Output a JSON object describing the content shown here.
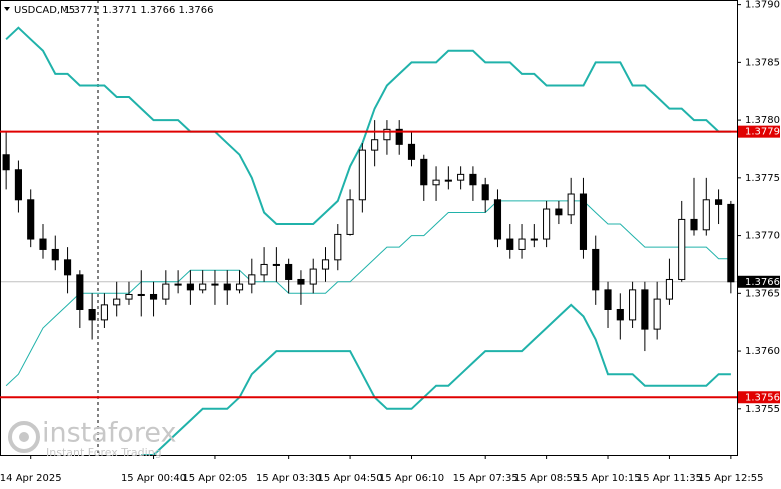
{
  "chart_data": {
    "type": "candlestick",
    "title": "USDCAD,M5",
    "subtitle": "1.3771 1.3771 1.3766 1.3766",
    "categories": [
      null,
      null,
      "14 Apr 2025",
      null,
      null,
      null,
      null,
      null,
      null,
      null,
      null,
      null,
      "15 Apr 00:40",
      null,
      null,
      null,
      null,
      "15 Apr 02:05",
      null,
      null,
      null,
      null,
      null,
      "15 Apr 03:30",
      null,
      null,
      null,
      null,
      "15 Apr 04:50",
      null,
      null,
      null,
      null,
      "15 Apr 06:10",
      null,
      null,
      null,
      null,
      null,
      "15 Apr 07:35",
      null,
      null,
      null,
      null,
      "15 Apr 08:55",
      null,
      null,
      null,
      null,
      "15 Apr 10:15",
      null,
      null,
      null,
      null,
      "15 Apr 11:35",
      null,
      null,
      null,
      null,
      "15 Apr 12:55"
    ],
    "open": [
      1.3777,
      1.37757,
      1.37731,
      1.37697,
      1.37688,
      1.37679,
      1.37666,
      1.37636,
      1.37627,
      1.3764,
      1.37645,
      1.37649,
      1.37649,
      1.37645,
      1.37658,
      1.37658,
      1.37653,
      1.37658,
      1.37658,
      1.37653,
      1.37658,
      1.37666,
      1.37675,
      1.37675,
      1.37662,
      1.37658,
      1.37671,
      1.37679,
      1.37701,
      1.37731,
      1.37774,
      1.37783,
      1.37792,
      1.37779,
      1.37766,
      1.37744,
      1.37748,
      1.37748,
      1.37753,
      1.37744,
      1.37731,
      1.37697,
      1.37688,
      1.37697,
      1.37697,
      1.37723,
      1.37718,
      1.37736,
      1.37688,
      1.37653,
      1.37636,
      1.37627,
      1.37653,
      1.37619,
      1.37645,
      1.37662,
      1.37714,
      1.37705,
      1.37731,
      1.37727
    ],
    "high": [
      1.3779,
      1.37765,
      1.3774,
      1.3771,
      1.377,
      1.3769,
      1.3767,
      1.3765,
      1.3765,
      1.3766,
      1.3766,
      1.3767,
      1.3766,
      1.3767,
      1.3767,
      1.3767,
      1.3767,
      1.3767,
      1.3767,
      1.3767,
      1.3768,
      1.3769,
      1.3769,
      1.3768,
      1.3767,
      1.3768,
      1.3769,
      1.3771,
      1.3774,
      1.3778,
      1.378,
      1.378,
      1.378,
      1.3779,
      1.3777,
      1.3776,
      1.3776,
      1.3776,
      1.3776,
      1.3775,
      1.3774,
      1.3771,
      1.3771,
      1.3771,
      1.3773,
      1.3773,
      1.3775,
      1.3775,
      1.377,
      1.3766,
      1.3765,
      1.3766,
      1.3766,
      1.3766,
      1.3768,
      1.3773,
      1.3775,
      1.3775,
      1.3774,
      1.3773
    ],
    "low": [
      1.3774,
      1.3772,
      1.3769,
      1.3768,
      1.3767,
      1.3765,
      1.3762,
      1.3761,
      1.3762,
      1.3763,
      1.3764,
      1.3763,
      1.3763,
      1.3764,
      1.3765,
      1.3764,
      1.3765,
      1.3764,
      1.3764,
      1.3765,
      1.3765,
      1.3766,
      1.3766,
      1.3765,
      1.3764,
      1.3765,
      1.3766,
      1.3767,
      1.377,
      1.3772,
      1.3776,
      1.3777,
      1.3777,
      1.3776,
      1.3773,
      1.3773,
      1.3774,
      1.3774,
      1.3773,
      1.3772,
      1.3769,
      1.3768,
      1.3768,
      1.3769,
      1.3769,
      1.3771,
      1.3771,
      1.3768,
      1.3764,
      1.3762,
      1.3761,
      1.3762,
      1.376,
      1.3761,
      1.3764,
      1.3766,
      1.377,
      1.377,
      1.3771,
      1.3765
    ],
    "close": [
      1.37757,
      1.37731,
      1.37697,
      1.37688,
      1.37679,
      1.37666,
      1.37636,
      1.37627,
      1.3764,
      1.37645,
      1.37649,
      1.37649,
      1.37645,
      1.37658,
      1.37658,
      1.37653,
      1.37658,
      1.37658,
      1.37653,
      1.37658,
      1.37666,
      1.37675,
      1.37675,
      1.37662,
      1.37658,
      1.37671,
      1.37679,
      1.37701,
      1.37731,
      1.37774,
      1.37783,
      1.37792,
      1.37779,
      1.37766,
      1.37744,
      1.37748,
      1.37748,
      1.37753,
      1.37744,
      1.37731,
      1.37697,
      1.37688,
      1.37697,
      1.37697,
      1.37723,
      1.37718,
      1.37736,
      1.37688,
      1.37653,
      1.37636,
      1.37627,
      1.37653,
      1.37619,
      1.37645,
      1.37662,
      1.37714,
      1.37705,
      1.37731,
      1.37727,
      1.3766
    ],
    "bands": [
      {
        "color": "#20b2aa",
        "values": [
          1.3787,
          1.3788,
          1.3787,
          1.3786,
          1.3784,
          1.3784,
          1.3783,
          1.3783,
          1.3783,
          1.3782,
          1.3782,
          1.3781,
          1.378,
          1.378,
          1.378,
          1.3779,
          1.3779,
          1.3779,
          1.3778,
          1.3777,
          1.3775,
          1.3772,
          1.3771,
          1.3771,
          1.3771,
          1.3771,
          1.3772,
          1.3773,
          1.3776,
          1.3778,
          1.3781,
          1.3783,
          1.3784,
          1.3785,
          1.3785,
          1.3785,
          1.3786,
          1.3786,
          1.3786,
          1.3785,
          1.3785,
          1.3785,
          1.3784,
          1.3784,
          1.3783,
          1.3783,
          1.3783,
          1.3783,
          1.3785,
          1.3785,
          1.3785,
          1.3783,
          1.3783,
          1.3782,
          1.3781,
          1.3781,
          1.378,
          1.378,
          1.3779,
          1.3779
        ]
      },
      {
        "color": "#20b2aa",
        "values": [
          1.3757,
          1.3758,
          1.376,
          1.3762,
          1.3763,
          1.3764,
          1.3765,
          1.3765,
          1.3765,
          1.3765,
          1.3765,
          1.3766,
          1.3766,
          1.3766,
          1.3766,
          1.3767,
          1.3767,
          1.3767,
          1.3767,
          1.3767,
          1.3766,
          1.3766,
          1.3766,
          1.3765,
          1.3765,
          1.3765,
          1.3765,
          1.3766,
          1.3766,
          1.3767,
          1.3768,
          1.3769,
          1.3769,
          1.377,
          1.377,
          1.3771,
          1.3772,
          1.3772,
          1.3772,
          1.3772,
          1.3773,
          1.3773,
          1.3773,
          1.3773,
          1.3773,
          1.3773,
          1.3773,
          1.3773,
          1.3772,
          1.3771,
          1.3771,
          1.377,
          1.3769,
          1.3769,
          1.3769,
          1.3769,
          1.3769,
          1.3769,
          1.3768,
          1.3768
        ]
      },
      {
        "color": "#20b2aa",
        "values": [
          null,
          null,
          null,
          null,
          null,
          null,
          null,
          null,
          null,
          null,
          null,
          1.3751,
          1.3751,
          1.3752,
          1.3753,
          1.3754,
          1.3755,
          1.3755,
          1.3755,
          1.3756,
          1.3758,
          1.3759,
          1.376,
          1.376,
          1.376,
          1.376,
          1.376,
          1.376,
          1.376,
          1.3758,
          1.3756,
          1.3755,
          1.3755,
          1.3755,
          1.3756,
          1.3757,
          1.3757,
          1.3758,
          1.3759,
          1.376,
          1.376,
          1.376,
          1.376,
          1.3761,
          1.3762,
          1.3763,
          1.3764,
          1.3763,
          1.3761,
          1.3758,
          1.3758,
          1.3758,
          1.3757,
          1.3757,
          1.3757,
          1.3757,
          1.3757,
          1.3757,
          1.3758,
          1.3758
        ]
      }
    ],
    "levels": [
      {
        "value": 1.3779,
        "color": "#e00000"
      },
      {
        "value": 1.3756,
        "color": "#e00000"
      }
    ],
    "ylim": [
      1.3751,
      1.37904
    ],
    "yticks": [
      1.3755,
      {
        "value": 1.376,
        "label": "1.3760"
      },
      1.3765,
      {
        "value": 1.377,
        "label": "1.3770"
      },
      1.3775,
      {
        "value": 1.378,
        "label": "1.3780"
      },
      1.3785,
      {
        "value": 1.379,
        "label": "1.3790"
      }
    ]
  },
  "watermark": {
    "brand": "instaforex",
    "tagline": "Instant Forex Trading"
  }
}
